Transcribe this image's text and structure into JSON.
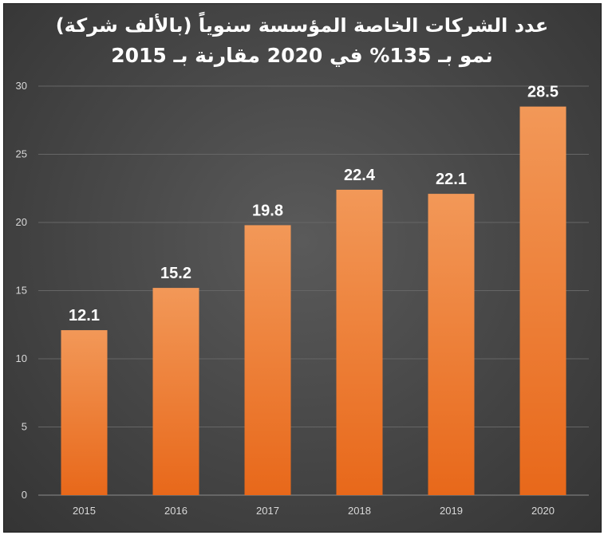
{
  "chart_data": {
    "type": "bar",
    "title": "عدد الشركات الخاصة المؤسسة سنوياً (بالألف شركة)",
    "subtitle": "نمو بـ 135% في 2020 مقارنة بـ 2015",
    "categories": [
      "2015",
      "2016",
      "2017",
      "2018",
      "2019",
      "2020"
    ],
    "values": [
      12.1,
      15.2,
      19.8,
      22.4,
      22.1,
      28.5
    ],
    "data_labels": [
      "12.1",
      "15.2",
      "19.8",
      "22.4",
      "22.1",
      "28.5"
    ],
    "y_ticks": [
      "0",
      "5",
      "10",
      "15",
      "20",
      "25",
      "30"
    ],
    "ylim": [
      0,
      30
    ],
    "grid": true,
    "legend": "none",
    "xlabel": "",
    "ylabel": ""
  },
  "colors": {
    "bar_top": "#f29858",
    "bar_bottom": "#e8681a",
    "grid": "#666666",
    "axis": "#8a8a8a"
  }
}
